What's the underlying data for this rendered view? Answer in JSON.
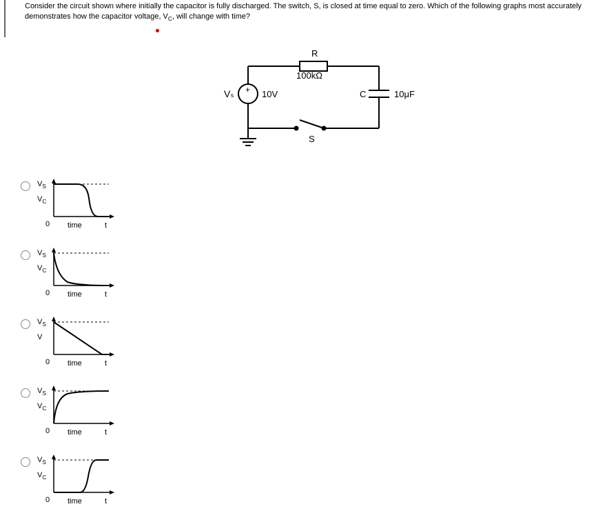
{
  "question": {
    "line1": "Consider the circuit shown where initially the capacitor is fully discharged. The switch, S, is closed at time equal to zero. Which of the following graphs most accurately",
    "line2_prefix": "demonstrates how the capacitor voltage, V",
    "line2_sub": "C",
    "line2_suffix": ", will change with time?"
  },
  "circuit": {
    "R_label": "R",
    "R_value": "100kΩ",
    "Vs_label": "Vₛ",
    "Vs_value": "10V",
    "C_label": "C",
    "C_value": "10μF",
    "S_label": "S",
    "plus_sign": "+",
    "stroke_color": "#000000",
    "stroke_width": 2
  },
  "graph_common": {
    "y_label_vs_prefix": "V",
    "y_label_vs_sub": "S",
    "zero": "0",
    "x_label": "time",
    "t_label": "t",
    "axis_color": "#000000",
    "dashed_color": "#000000",
    "curve_width": 2
  },
  "options": [
    {
      "y_label_main": "V",
      "y_label_sub": "C",
      "curve_type": "s_decay"
    },
    {
      "y_label_main": "V",
      "y_label_sub": "C",
      "curve_type": "exp_decay"
    },
    {
      "y_label_main": "V",
      "y_label_sub": "",
      "curve_type": "linear_decay"
    },
    {
      "y_label_main": "V",
      "y_label_sub": "C",
      "curve_type": "exp_rise"
    },
    {
      "y_label_main": "V",
      "y_label_sub": "C",
      "curve_type": "delayed_rise"
    }
  ]
}
